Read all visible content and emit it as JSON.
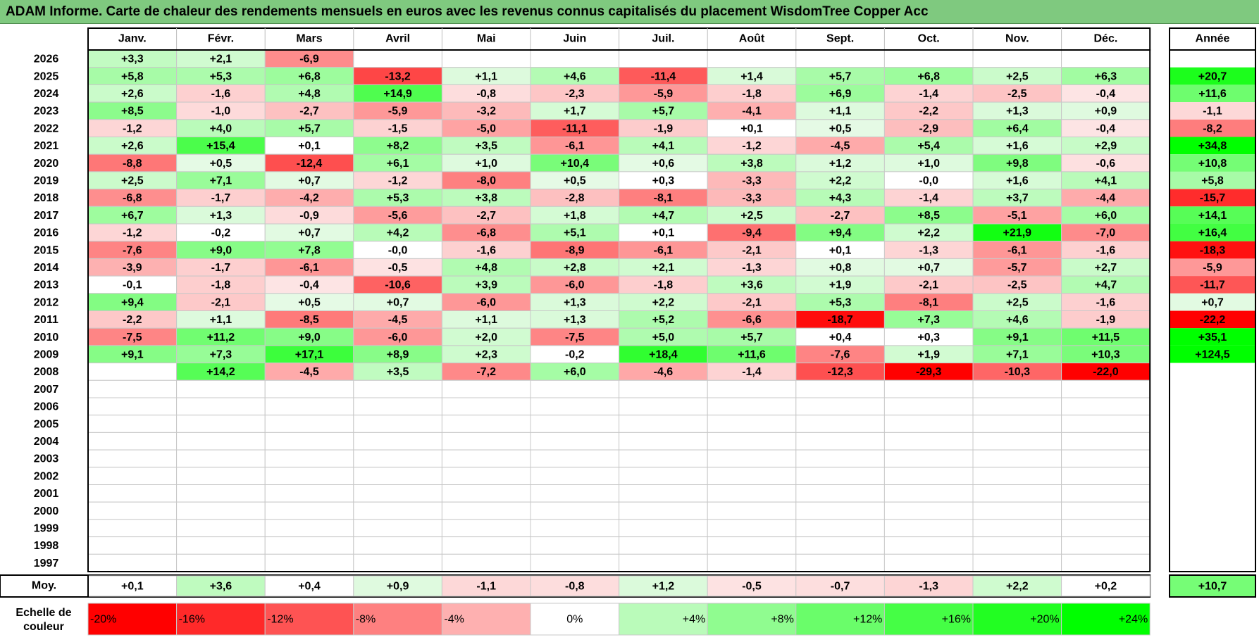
{
  "title": "ADAM Informe. Carte de chaleur des rendements mensuels en euros avec les revenus connus capitalisés du placement WisdomTree Copper Acc",
  "chart_data": {
    "type": "heatmap",
    "months": [
      "Janv.",
      "Févr.",
      "Mars",
      "Avril",
      "Mai",
      "Juin",
      "Juil.",
      "Août",
      "Sept.",
      "Oct.",
      "Nov.",
      "Déc."
    ],
    "year_column_label": "Année",
    "rows": [
      {
        "year": "2026",
        "values": [
          "+3,3",
          "+2,1",
          "-6,9",
          "",
          "",
          "",
          "",
          "",
          "",
          "",
          "",
          ""
        ],
        "annual": ""
      },
      {
        "year": "2025",
        "values": [
          "+5,8",
          "+5,3",
          "+6,8",
          "-13,2",
          "+1,1",
          "+4,6",
          "-11,4",
          "+1,4",
          "+5,7",
          "+6,8",
          "+2,5",
          "+6,3"
        ],
        "annual": "+20,7"
      },
      {
        "year": "2024",
        "values": [
          "+2,6",
          "-1,6",
          "+4,8",
          "+14,9",
          "-0,8",
          "-2,3",
          "-5,9",
          "-1,8",
          "+6,9",
          "-1,4",
          "-2,5",
          "-0,4"
        ],
        "annual": "+11,6"
      },
      {
        "year": "2023",
        "values": [
          "+8,5",
          "-1,0",
          "-2,7",
          "-5,9",
          "-3,2",
          "+1,7",
          "+5,7",
          "-4,1",
          "+1,1",
          "-2,2",
          "+1,3",
          "+0,9"
        ],
        "annual": "-1,1"
      },
      {
        "year": "2022",
        "values": [
          "-1,2",
          "+4,0",
          "+5,7",
          "-1,5",
          "-5,0",
          "-11,1",
          "-1,9",
          "+0,1",
          "+0,5",
          "-2,9",
          "+6,4",
          "-0,4"
        ],
        "annual": "-8,2"
      },
      {
        "year": "2021",
        "values": [
          "+2,6",
          "+15,4",
          "+0,1",
          "+8,2",
          "+3,5",
          "-6,1",
          "+4,1",
          "-1,2",
          "-4,5",
          "+5,4",
          "+1,6",
          "+2,9"
        ],
        "annual": "+34,8"
      },
      {
        "year": "2020",
        "values": [
          "-8,8",
          "+0,5",
          "-12,4",
          "+6,1",
          "+1,0",
          "+10,4",
          "+0,6",
          "+3,8",
          "+1,2",
          "+1,0",
          "+9,8",
          "-0,6"
        ],
        "annual": "+10,8"
      },
      {
        "year": "2019",
        "values": [
          "+2,5",
          "+7,1",
          "+0,7",
          "-1,2",
          "-8,0",
          "+0,5",
          "+0,3",
          "-3,3",
          "+2,2",
          "-0,0",
          "+1,6",
          "+4,1"
        ],
        "annual": "+5,8"
      },
      {
        "year": "2018",
        "values": [
          "-6,8",
          "-1,7",
          "-4,2",
          "+5,3",
          "+3,8",
          "-2,8",
          "-8,1",
          "-3,3",
          "+4,3",
          "-1,4",
          "+3,7",
          "-4,4"
        ],
        "annual": "-15,7"
      },
      {
        "year": "2017",
        "values": [
          "+6,7",
          "+1,3",
          "-0,9",
          "-5,6",
          "-2,7",
          "+1,8",
          "+4,7",
          "+2,5",
          "-2,7",
          "+8,5",
          "-5,1",
          "+6,0"
        ],
        "annual": "+14,1"
      },
      {
        "year": "2016",
        "values": [
          "-1,2",
          "-0,2",
          "+0,7",
          "+4,2",
          "-6,8",
          "+5,1",
          "+0,1",
          "-9,4",
          "+9,4",
          "+2,2",
          "+21,9",
          "-7,0"
        ],
        "annual": "+16,4"
      },
      {
        "year": "2015",
        "values": [
          "-7,6",
          "+9,0",
          "+7,8",
          "-0,0",
          "-1,6",
          "-8,9",
          "-6,1",
          "-2,1",
          "+0,1",
          "-1,3",
          "-6,1",
          "-1,6"
        ],
        "annual": "-18,3"
      },
      {
        "year": "2014",
        "values": [
          "-3,9",
          "-1,7",
          "-6,1",
          "-0,5",
          "+4,8",
          "+2,8",
          "+2,1",
          "-1,3",
          "+0,8",
          "+0,7",
          "-5,7",
          "+2,7"
        ],
        "annual": "-5,9"
      },
      {
        "year": "2013",
        "values": [
          "-0,1",
          "-1,8",
          "-0,4",
          "-10,6",
          "+3,9",
          "-6,0",
          "-1,8",
          "+3,6",
          "+1,9",
          "-2,1",
          "-2,5",
          "+4,7"
        ],
        "annual": "-11,7"
      },
      {
        "year": "2012",
        "values": [
          "+9,4",
          "-2,1",
          "+0,5",
          "+0,7",
          "-6,0",
          "+1,3",
          "+2,2",
          "-2,1",
          "+5,3",
          "-8,1",
          "+2,5",
          "-1,6"
        ],
        "annual": "+0,7"
      },
      {
        "year": "2011",
        "values": [
          "-2,2",
          "+1,1",
          "-8,5",
          "-4,5",
          "+1,1",
          "+1,3",
          "+5,2",
          "-6,6",
          "-18,7",
          "+7,3",
          "+4,6",
          "-1,9"
        ],
        "annual": "-22,2"
      },
      {
        "year": "2010",
        "values": [
          "-7,5",
          "+11,2",
          "+9,0",
          "-6,0",
          "+2,0",
          "-7,5",
          "+5,0",
          "+5,7",
          "+0,4",
          "+0,3",
          "+9,1",
          "+11,5"
        ],
        "annual": "+35,1"
      },
      {
        "year": "2009",
        "values": [
          "+9,1",
          "+7,3",
          "+17,1",
          "+8,9",
          "+2,3",
          "-0,2",
          "+18,4",
          "+11,6",
          "-7,6",
          "+1,9",
          "+7,1",
          "+10,3"
        ],
        "annual": "+124,5"
      },
      {
        "year": "2008",
        "values": [
          "",
          "+14,2",
          "-4,5",
          "+3,5",
          "-7,2",
          "+6,0",
          "-4,6",
          "-1,4",
          "-12,3",
          "-29,3",
          "-10,3",
          "-22,0"
        ],
        "annual": ""
      },
      {
        "year": "2007",
        "values": [
          "",
          "",
          "",
          "",
          "",
          "",
          "",
          "",
          "",
          "",
          "",
          ""
        ],
        "annual": ""
      },
      {
        "year": "2006",
        "values": [
          "",
          "",
          "",
          "",
          "",
          "",
          "",
          "",
          "",
          "",
          "",
          ""
        ],
        "annual": ""
      },
      {
        "year": "2005",
        "values": [
          "",
          "",
          "",
          "",
          "",
          "",
          "",
          "",
          "",
          "",
          "",
          ""
        ],
        "annual": ""
      },
      {
        "year": "2004",
        "values": [
          "",
          "",
          "",
          "",
          "",
          "",
          "",
          "",
          "",
          "",
          "",
          ""
        ],
        "annual": ""
      },
      {
        "year": "2003",
        "values": [
          "",
          "",
          "",
          "",
          "",
          "",
          "",
          "",
          "",
          "",
          "",
          ""
        ],
        "annual": ""
      },
      {
        "year": "2002",
        "values": [
          "",
          "",
          "",
          "",
          "",
          "",
          "",
          "",
          "",
          "",
          "",
          ""
        ],
        "annual": ""
      },
      {
        "year": "2001",
        "values": [
          "",
          "",
          "",
          "",
          "",
          "",
          "",
          "",
          "",
          "",
          "",
          ""
        ],
        "annual": ""
      },
      {
        "year": "2000",
        "values": [
          "",
          "",
          "",
          "",
          "",
          "",
          "",
          "",
          "",
          "",
          "",
          ""
        ],
        "annual": ""
      },
      {
        "year": "1999",
        "values": [
          "",
          "",
          "",
          "",
          "",
          "",
          "",
          "",
          "",
          "",
          "",
          ""
        ],
        "annual": ""
      },
      {
        "year": "1998",
        "values": [
          "",
          "",
          "",
          "",
          "",
          "",
          "",
          "",
          "",
          "",
          "",
          ""
        ],
        "annual": ""
      },
      {
        "year": "1997",
        "values": [
          "",
          "",
          "",
          "",
          "",
          "",
          "",
          "",
          "",
          "",
          "",
          ""
        ],
        "annual": ""
      }
    ],
    "average": {
      "label": "Moy.",
      "values": [
        "+0,1",
        "+3,6",
        "+0,4",
        "+0,9",
        "-1,1",
        "-0,8",
        "+1,2",
        "-0,5",
        "-0,7",
        "-1,3",
        "+2,2",
        "+0,2"
      ],
      "annual": "+10,7"
    },
    "color_scale": {
      "label": "Echelle de couleur",
      "steps": [
        {
          "label": "-20%",
          "value": -20
        },
        {
          "label": "-16%",
          "value": -16
        },
        {
          "label": "-12%",
          "value": -12
        },
        {
          "label": "-8%",
          "value": -8
        },
        {
          "label": "-4%",
          "value": -4
        },
        {
          "label": "0%",
          "value": 0
        },
        {
          "label": "+4%",
          "value": 4
        },
        {
          "label": "+8%",
          "value": 8
        },
        {
          "label": "+12%",
          "value": 12
        },
        {
          "label": "+16%",
          "value": 16
        },
        {
          "label": "+20%",
          "value": 20
        },
        {
          "label": "+24%",
          "value": 24
        }
      ]
    },
    "colors": {
      "negative_max": "#ff0000",
      "positive_max": "#00ff00",
      "neutral": "#ffffff",
      "title_background": "#7fc97f"
    }
  }
}
